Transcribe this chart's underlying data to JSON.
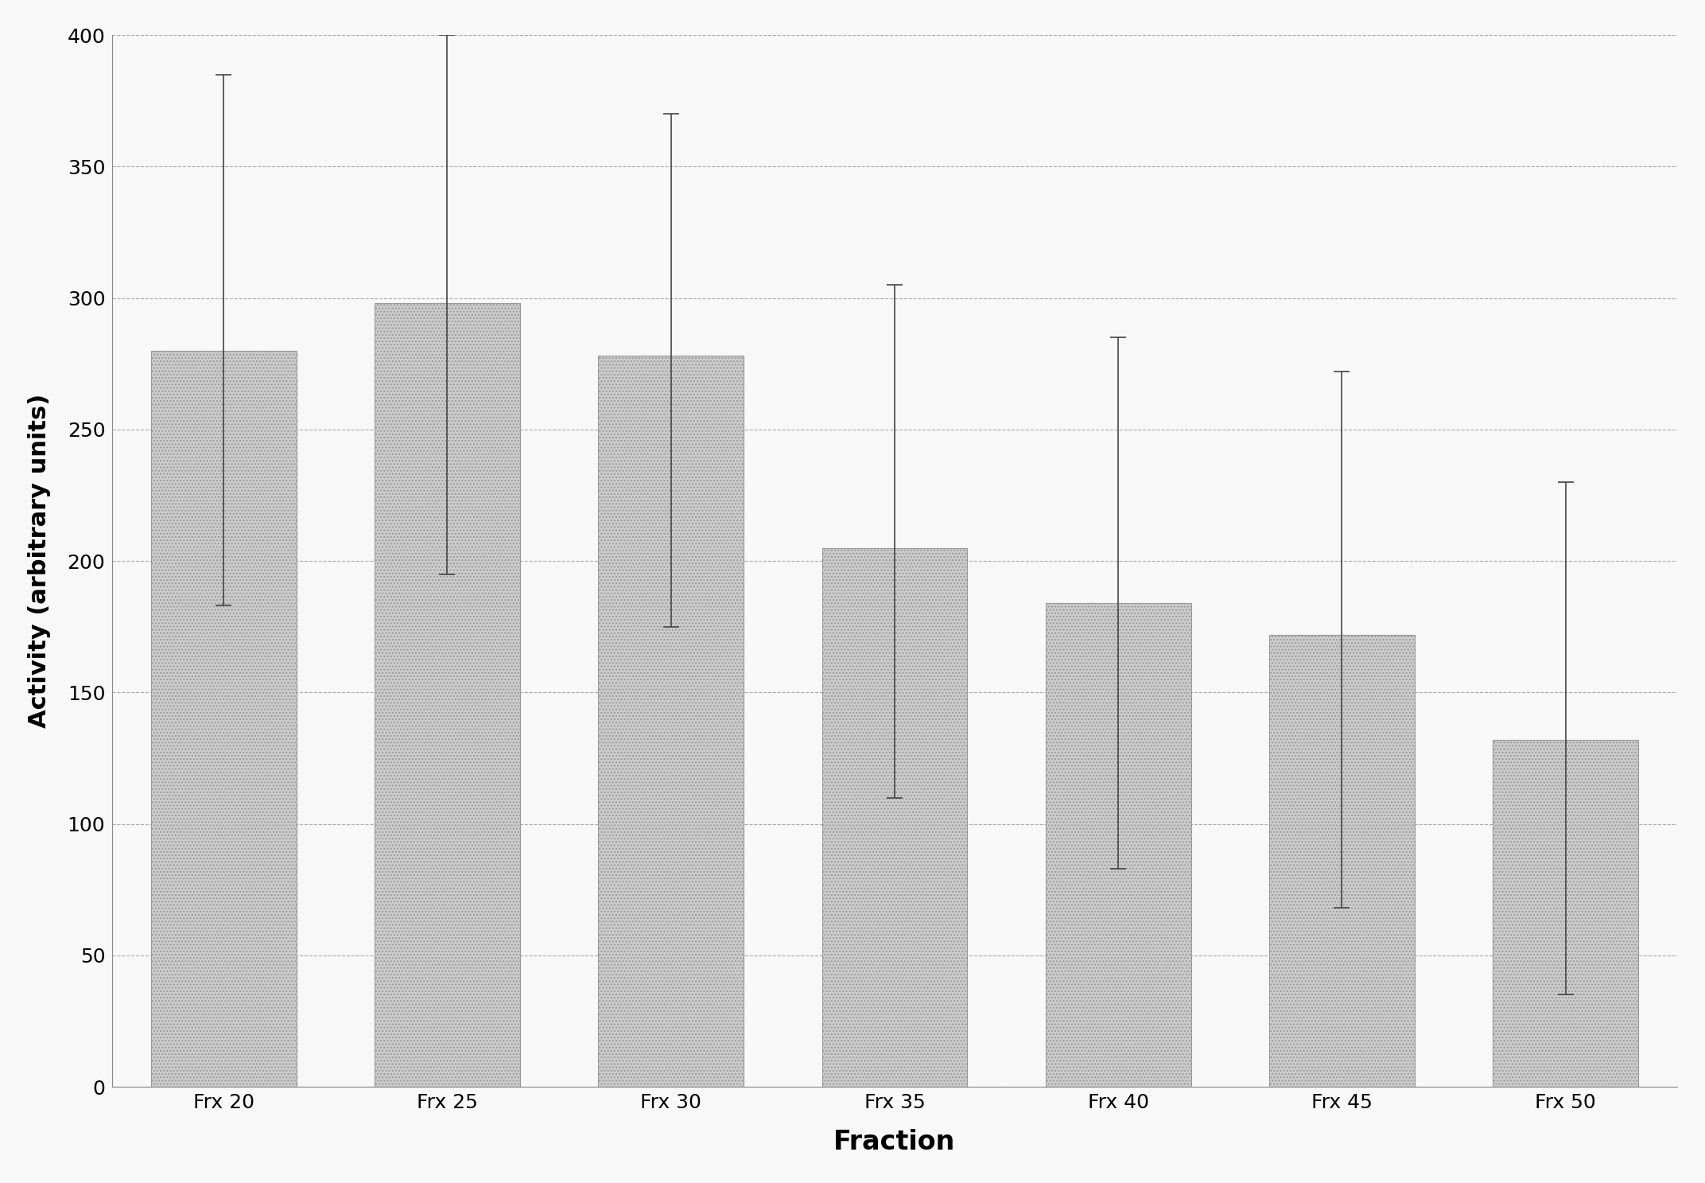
{
  "categories": [
    "Frx 20",
    "Frx 25",
    "Frx 30",
    "Frx 35",
    "Frx 40",
    "Frx 45",
    "Frx 50"
  ],
  "values": [
    280,
    298,
    278,
    205,
    184,
    172,
    132
  ],
  "error_upper": [
    105,
    102,
    92,
    100,
    101,
    100,
    98
  ],
  "error_lower": [
    97,
    103,
    103,
    95,
    101,
    104,
    97
  ],
  "bar_color": "#cccccc",
  "bar_edgecolor": "#999999",
  "bar_hatch": "....",
  "ylabel": "Activity (arbitrary units)",
  "xlabel": "Fraction",
  "ylim": [
    0,
    400
  ],
  "yticks": [
    0,
    50,
    100,
    150,
    200,
    250,
    300,
    350,
    400
  ],
  "background_color": "#f8f8f8",
  "grid_color": "#aaaaaa",
  "ylabel_fontsize": 22,
  "xlabel_fontsize": 24,
  "tick_fontsize": 18,
  "figsize": [
    21.44,
    14.87
  ],
  "dpi": 100
}
